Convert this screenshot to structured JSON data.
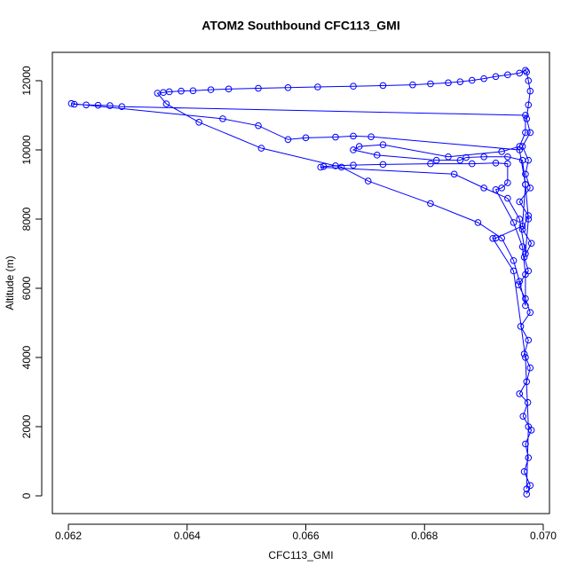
{
  "chart_data": {
    "type": "line",
    "title": "ATOM2 Southbound CFC113_GMI",
    "x_label": "CFC113_GMI",
    "y_label": "Altitude (m)",
    "color": "#0000ff",
    "x": [
      0.06972,
      0.06978,
      0.06968,
      0.06975,
      0.0697,
      0.0698,
      0.06966,
      0.06974,
      0.0696,
      0.06972,
      0.06978,
      0.06968,
      0.06975,
      0.06962,
      0.06978,
      0.0697,
      0.06958,
      0.06975,
      0.06968,
      0.0698,
      0.06965,
      0.06975,
      0.0696,
      0.06978,
      0.0697,
      0.06975,
      0.06965,
      0.06978,
      0.06972,
      0.06975,
      0.06978,
      0.06975,
      0.06972,
      0.0697,
      0.0696,
      0.0694,
      0.0692,
      0.069,
      0.0688,
      0.0686,
      0.0684,
      0.0681,
      0.0678,
      0.0673,
      0.0668,
      0.0662,
      0.0657,
      0.0652,
      0.0647,
      0.0644,
      0.0641,
      0.0639,
      0.0637,
      0.0636,
      0.0635,
      0.06365,
      0.0642,
      0.06525,
      0.0666,
      0.06705,
      0.0681,
      0.0689,
      0.0693,
      0.0695,
      0.0696,
      0.0697,
      0.0697,
      0.06965,
      0.0695,
      0.0692,
      0.0693,
      0.0694,
      0.0694,
      0.0692,
      0.0688,
      0.0681,
      0.0673,
      0.0668,
      0.0665,
      0.0663,
      0.06625,
      0.0685,
      0.069,
      0.0694,
      0.0696,
      0.0697,
      0.06975,
      0.0697,
      0.06965,
      0.0694,
      0.069,
      0.0687,
      0.0686,
      0.0682,
      0.0672,
      0.0668,
      0.0669,
      0.0673,
      0.0684,
      0.0693,
      0.0696,
      0.0697,
      0.0697,
      0.0629,
      0.0627,
      0.0625,
      0.0623,
      0.0621,
      0.06205,
      0.0646,
      0.0652,
      0.0657,
      0.066,
      0.0665,
      0.0668,
      0.0671,
      0.0696,
      0.0697,
      0.06965,
      0.0692,
      0.06915,
      0.0695,
      0.0697,
      0.06975,
      0.06972
    ],
    "values": [
      50,
      300,
      700,
      1100,
      1500,
      1900,
      2300,
      2700,
      2950,
      3300,
      3700,
      4100,
      4500,
      4900,
      5300,
      5700,
      6100,
      6500,
      6900,
      7300,
      7700,
      8100,
      8500,
      8900,
      9300,
      9700,
      10100,
      10500,
      10900,
      11300,
      11700,
      12000,
      12250,
      12300,
      12220,
      12170,
      12120,
      12060,
      12010,
      11970,
      11940,
      11910,
      11880,
      11860,
      11840,
      11820,
      11800,
      11780,
      11760,
      11740,
      11710,
      11700,
      11680,
      11660,
      11640,
      11330,
      10800,
      10050,
      9500,
      9100,
      8450,
      7900,
      7450,
      6800,
      6200,
      5500,
      6400,
      7200,
      7900,
      8850,
      8900,
      9050,
      9600,
      9620,
      9600,
      9600,
      9580,
      9560,
      9540,
      9520,
      9500,
      9300,
      8900,
      8600,
      8000,
      7000,
      8000,
      9000,
      9700,
      9800,
      9800,
      9780,
      9700,
      9700,
      9850,
      10000,
      10100,
      10150,
      9800,
      9950,
      10100,
      10500,
      11000,
      11250,
      11280,
      11290,
      11300,
      11320,
      11340,
      10900,
      10700,
      10300,
      10350,
      10370,
      10400,
      10380,
      10000,
      9000,
      7800,
      7450,
      7440,
      6500,
      4000,
      2000,
      200
    ],
    "xlim": [
      0.06173,
      0.070105
    ],
    "ylim": [
      -513,
      12820
    ],
    "xticks": [
      0.062,
      0.064,
      0.066,
      0.068,
      {
        "value": 0.07,
        "label": "0.070"
      }
    ],
    "yticks": [
      0,
      2000,
      4000,
      6000,
      8000,
      10000,
      12000
    ],
    "grid": false
  }
}
